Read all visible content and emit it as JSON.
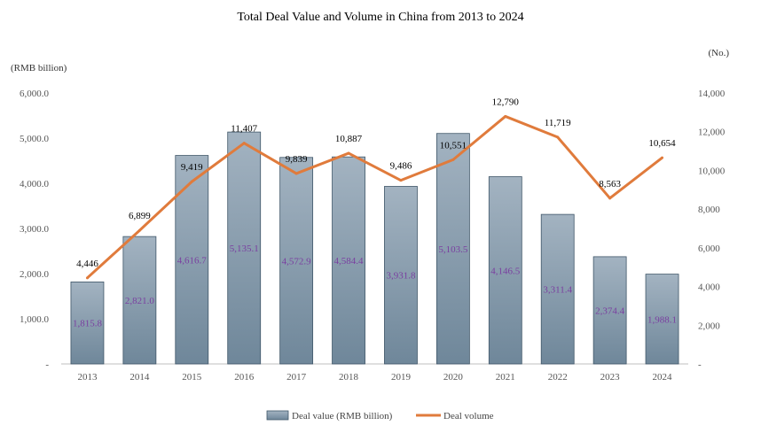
{
  "chart_data": {
    "type": "bar",
    "title": "Total Deal Value and Volume in China from 2013 to 2024",
    "left_unit": "(RMB billion)",
    "right_unit": "(No.)",
    "categories": [
      "2013",
      "2014",
      "2015",
      "2016",
      "2017",
      "2018",
      "2019",
      "2020",
      "2021",
      "2022",
      "2023",
      "2024"
    ],
    "series": [
      {
        "name": "Deal value (RMB billion)",
        "type": "bar",
        "axis": "left",
        "color": "#8fa3b3",
        "values": [
          1815.8,
          2821.0,
          4616.7,
          5135.1,
          4572.9,
          4584.4,
          3931.8,
          5103.5,
          4146.5,
          3311.4,
          2374.4,
          1988.1
        ],
        "labels": [
          "1,815.8",
          "2,821.0",
          "4,616.7",
          "5,135.1",
          "4,572.9",
          "4,584.4",
          "3,931.8",
          "5,103.5",
          "4,146.5",
          "3,311.4",
          "2,374.4",
          "1,988.1"
        ]
      },
      {
        "name": "Deal volume",
        "type": "line",
        "axis": "right",
        "color": "#e07b3c",
        "values": [
          4446,
          6899,
          9419,
          11407,
          9839,
          10887,
          9486,
          10551,
          12790,
          11719,
          8563,
          10654
        ],
        "labels": [
          "4,446",
          "6,899",
          "9,419",
          "11,407",
          "9,839",
          "10,887",
          "9,486",
          "10,551",
          "12,790",
          "11,719",
          "8,563",
          "10,654"
        ]
      }
    ],
    "y_left": {
      "min": 0,
      "max": 6000,
      "step": 1000,
      "tick_labels": [
        "-",
        "1,000.0",
        "2,000.0",
        "3,000.0",
        "4,000.0",
        "5,000.0",
        "6,000.0"
      ]
    },
    "y_right": {
      "min": 0,
      "max": 14000,
      "step": 2000,
      "tick_labels": [
        "-",
        "2,000",
        "4,000",
        "6,000",
        "8,000",
        "10,000",
        "12,000",
        "14,000"
      ]
    },
    "grid": false,
    "legend": "bottom-center"
  }
}
